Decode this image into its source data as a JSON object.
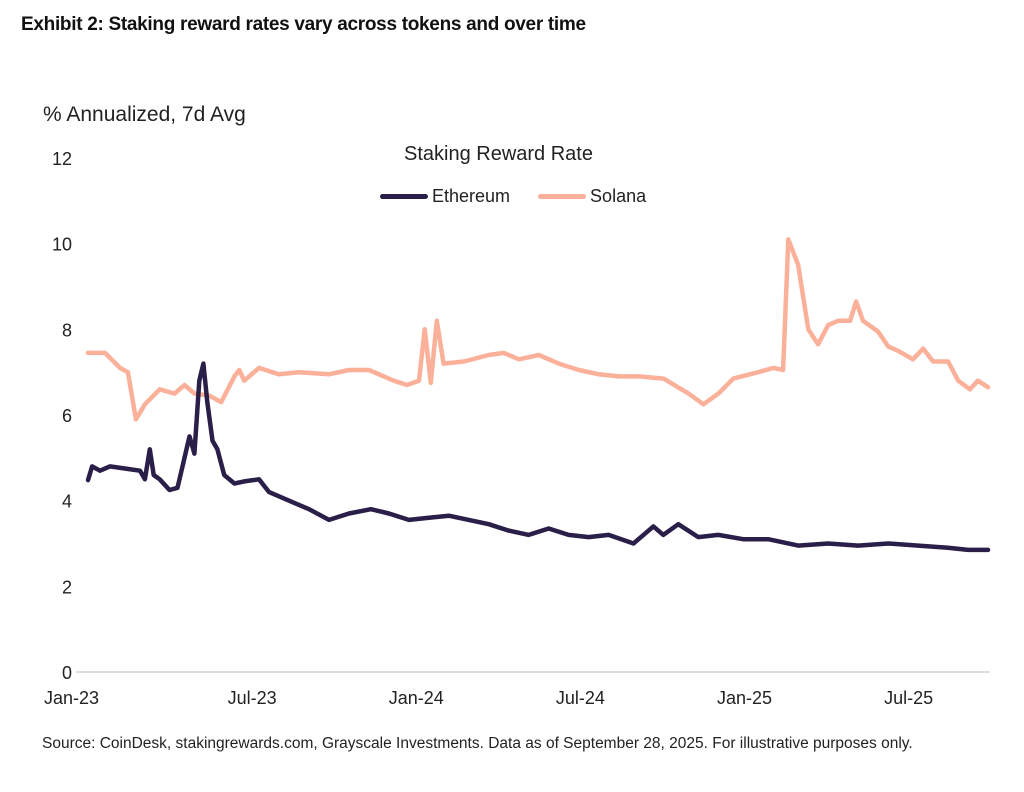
{
  "header": {
    "exhibit_title": "Exhibit 2: Staking reward rates vary across tokens and over time",
    "y_unit_label": "% Annualized, 7d Avg"
  },
  "footer": {
    "source_text": "Source: CoinDesk, stakingrewards.com, Grayscale Investments. Data as of September 28, 2025. For illustrative purposes only."
  },
  "chart_data": {
    "type": "line",
    "title": "Staking Reward Rate",
    "xlabel": "",
    "ylabel": "% Annualized, 7d Avg",
    "x_unit": "months since Jan 2023",
    "xlim": [
      0,
      32.9
    ],
    "ylim": [
      0,
      12
    ],
    "yticks": [
      0,
      2,
      4,
      6,
      8,
      10,
      12
    ],
    "xticks": [
      {
        "value": 0,
        "label": "Jan-23"
      },
      {
        "value": 6,
        "label": "Jul-23"
      },
      {
        "value": 12,
        "label": "Jan-24"
      },
      {
        "value": 18,
        "label": "Jul-24"
      },
      {
        "value": 24,
        "label": "Jan-25"
      },
      {
        "value": 30,
        "label": "Jul-25"
      }
    ],
    "grid": false,
    "baseline": true,
    "legend_position": "top-center",
    "series": [
      {
        "name": "Ethereum",
        "color": "#2a1f48",
        "points": [
          [
            0.0,
            4.48
          ],
          [
            0.15,
            4.8
          ],
          [
            0.44,
            4.7
          ],
          [
            0.8,
            4.8
          ],
          [
            1.35,
            4.75
          ],
          [
            1.9,
            4.7
          ],
          [
            2.08,
            4.5
          ],
          [
            2.26,
            5.2
          ],
          [
            2.4,
            4.6
          ],
          [
            2.62,
            4.5
          ],
          [
            2.98,
            4.25
          ],
          [
            3.27,
            4.3
          ],
          [
            3.49,
            4.9
          ],
          [
            3.71,
            5.5
          ],
          [
            3.89,
            5.1
          ],
          [
            4.07,
            6.8
          ],
          [
            4.22,
            7.2
          ],
          [
            4.36,
            6.3
          ],
          [
            4.55,
            5.4
          ],
          [
            4.73,
            5.2
          ],
          [
            4.98,
            4.6
          ],
          [
            5.35,
            4.4
          ],
          [
            5.71,
            4.45
          ],
          [
            6.25,
            4.5
          ],
          [
            6.62,
            4.2
          ],
          [
            7.35,
            4.0
          ],
          [
            8.08,
            3.8
          ],
          [
            8.81,
            3.55
          ],
          [
            9.54,
            3.7
          ],
          [
            10.34,
            3.8
          ],
          [
            11.0,
            3.7
          ],
          [
            11.73,
            3.55
          ],
          [
            12.46,
            3.6
          ],
          [
            13.19,
            3.65
          ],
          [
            13.92,
            3.55
          ],
          [
            14.65,
            3.45
          ],
          [
            15.38,
            3.3
          ],
          [
            16.11,
            3.2
          ],
          [
            16.84,
            3.35
          ],
          [
            17.57,
            3.2
          ],
          [
            18.3,
            3.15
          ],
          [
            19.03,
            3.2
          ],
          [
            19.94,
            3.0
          ],
          [
            20.67,
            3.4
          ],
          [
            21.03,
            3.2
          ],
          [
            21.58,
            3.45
          ],
          [
            22.31,
            3.15
          ],
          [
            23.04,
            3.2
          ],
          [
            23.95,
            3.1
          ],
          [
            24.87,
            3.1
          ],
          [
            25.96,
            2.95
          ],
          [
            27.06,
            3.0
          ],
          [
            28.15,
            2.95
          ],
          [
            29.25,
            3.0
          ],
          [
            30.35,
            2.95
          ],
          [
            31.44,
            2.9
          ],
          [
            32.17,
            2.85
          ],
          [
            32.9,
            2.85
          ]
        ]
      },
      {
        "name": "Solana",
        "color": "#fbb09a",
        "points": [
          [
            0.0,
            7.45
          ],
          [
            0.62,
            7.45
          ],
          [
            1.17,
            7.1
          ],
          [
            1.46,
            7.0
          ],
          [
            1.75,
            5.9
          ],
          [
            2.08,
            6.25
          ],
          [
            2.62,
            6.6
          ],
          [
            3.16,
            6.5
          ],
          [
            3.53,
            6.7
          ],
          [
            3.89,
            6.5
          ],
          [
            4.44,
            6.45
          ],
          [
            4.87,
            6.3
          ],
          [
            5.35,
            6.9
          ],
          [
            5.53,
            7.05
          ],
          [
            5.71,
            6.8
          ],
          [
            6.25,
            7.1
          ],
          [
            6.98,
            6.95
          ],
          [
            7.71,
            7.0
          ],
          [
            8.81,
            6.95
          ],
          [
            9.54,
            7.05
          ],
          [
            10.27,
            7.05
          ],
          [
            11.18,
            6.8
          ],
          [
            11.66,
            6.7
          ],
          [
            12.1,
            6.8
          ],
          [
            12.31,
            8.0
          ],
          [
            12.53,
            6.75
          ],
          [
            12.75,
            8.2
          ],
          [
            13.0,
            7.2
          ],
          [
            13.74,
            7.25
          ],
          [
            14.65,
            7.4
          ],
          [
            15.2,
            7.45
          ],
          [
            15.75,
            7.3
          ],
          [
            16.48,
            7.4
          ],
          [
            17.21,
            7.2
          ],
          [
            17.94,
            7.05
          ],
          [
            18.67,
            6.95
          ],
          [
            19.4,
            6.9
          ],
          [
            20.13,
            6.9
          ],
          [
            21.04,
            6.85
          ],
          [
            21.95,
            6.5
          ],
          [
            22.5,
            6.25
          ],
          [
            23.04,
            6.5
          ],
          [
            23.59,
            6.85
          ],
          [
            24.5,
            7.0
          ],
          [
            25.05,
            7.1
          ],
          [
            25.41,
            7.05
          ],
          [
            25.6,
            10.1
          ],
          [
            25.96,
            9.5
          ],
          [
            26.33,
            8.0
          ],
          [
            26.69,
            7.65
          ],
          [
            27.06,
            8.1
          ],
          [
            27.42,
            8.2
          ],
          [
            27.86,
            8.2
          ],
          [
            28.08,
            8.65
          ],
          [
            28.33,
            8.2
          ],
          [
            28.88,
            7.95
          ],
          [
            29.25,
            7.6
          ],
          [
            29.61,
            7.5
          ],
          [
            30.16,
            7.3
          ],
          [
            30.53,
            7.55
          ],
          [
            30.89,
            7.25
          ],
          [
            31.44,
            7.25
          ],
          [
            31.81,
            6.8
          ],
          [
            32.24,
            6.6
          ],
          [
            32.53,
            6.8
          ],
          [
            32.9,
            6.65
          ]
        ]
      }
    ]
  }
}
